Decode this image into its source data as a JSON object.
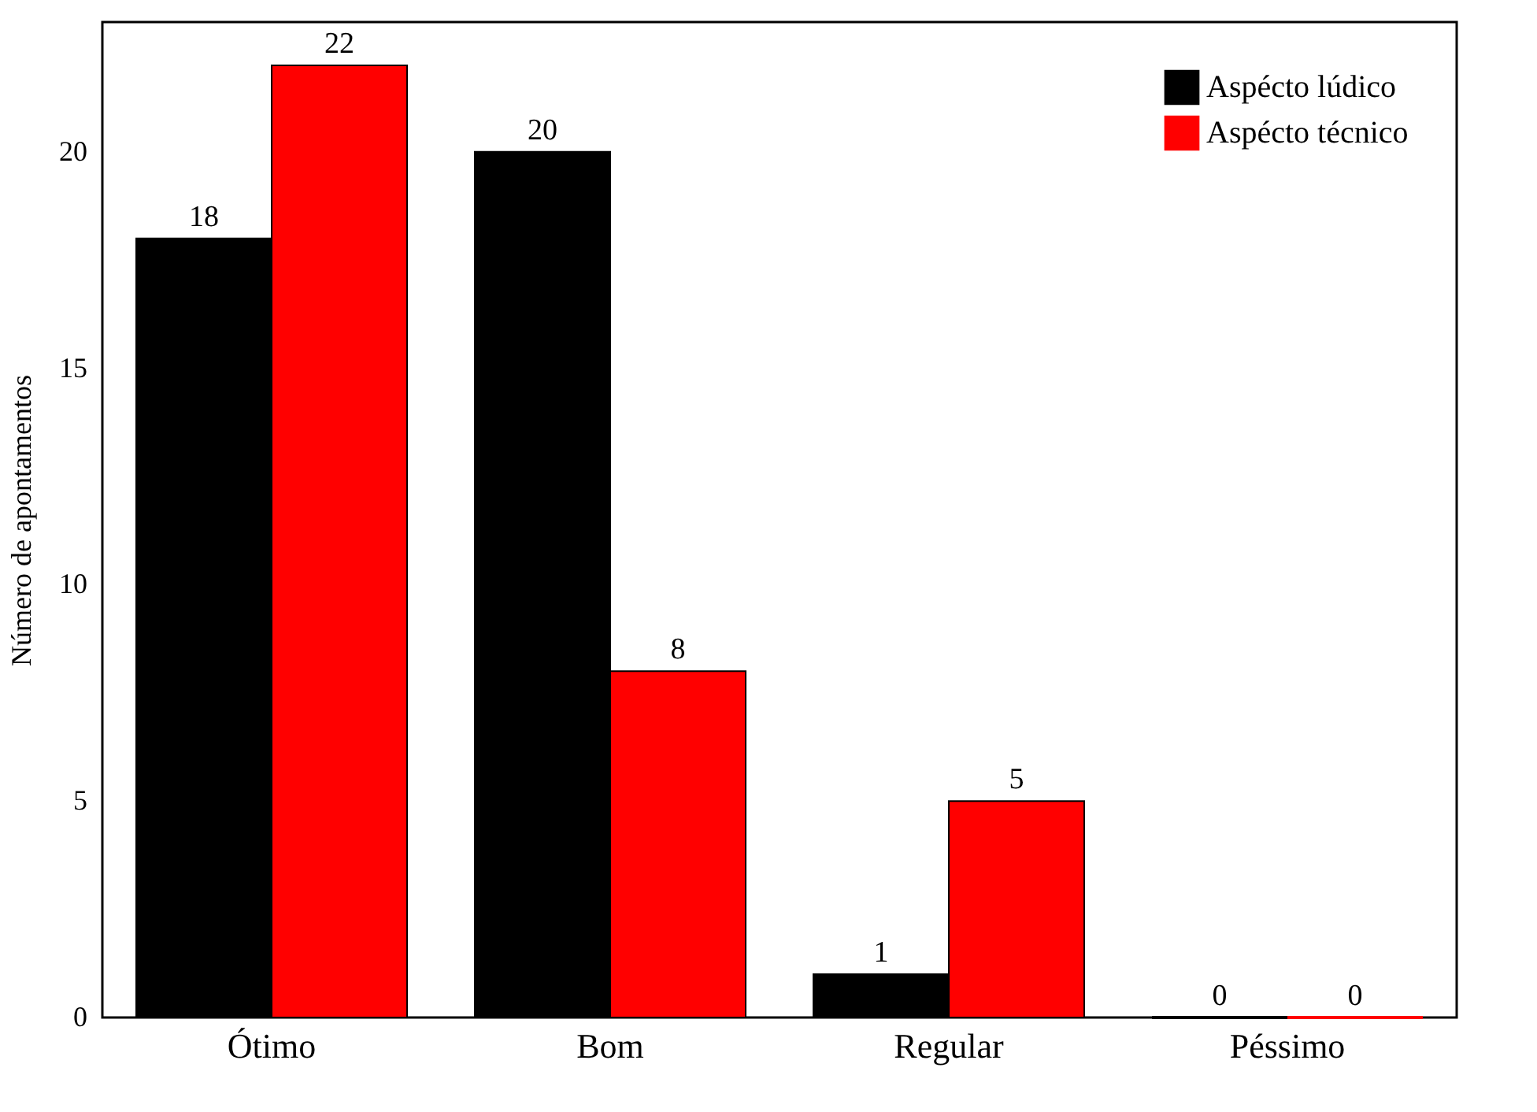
{
  "chart_data": {
    "type": "bar",
    "ylabel": "Número de apontamentos",
    "categories": [
      "Ótimo",
      "Bom",
      "Regular",
      "Péssimo"
    ],
    "series": [
      {
        "name": "Aspécto lúdico",
        "color": "#000000",
        "values": [
          18,
          20,
          1,
          0
        ]
      },
      {
        "name": "Aspécto técnico",
        "color": "#ff0000",
        "values": [
          22,
          8,
          5,
          0
        ]
      }
    ],
    "ylim": [
      0,
      23
    ],
    "yticks": [
      0,
      5,
      10,
      15,
      20
    ],
    "grid": false,
    "legend": "top right",
    "data_labels": true
  }
}
